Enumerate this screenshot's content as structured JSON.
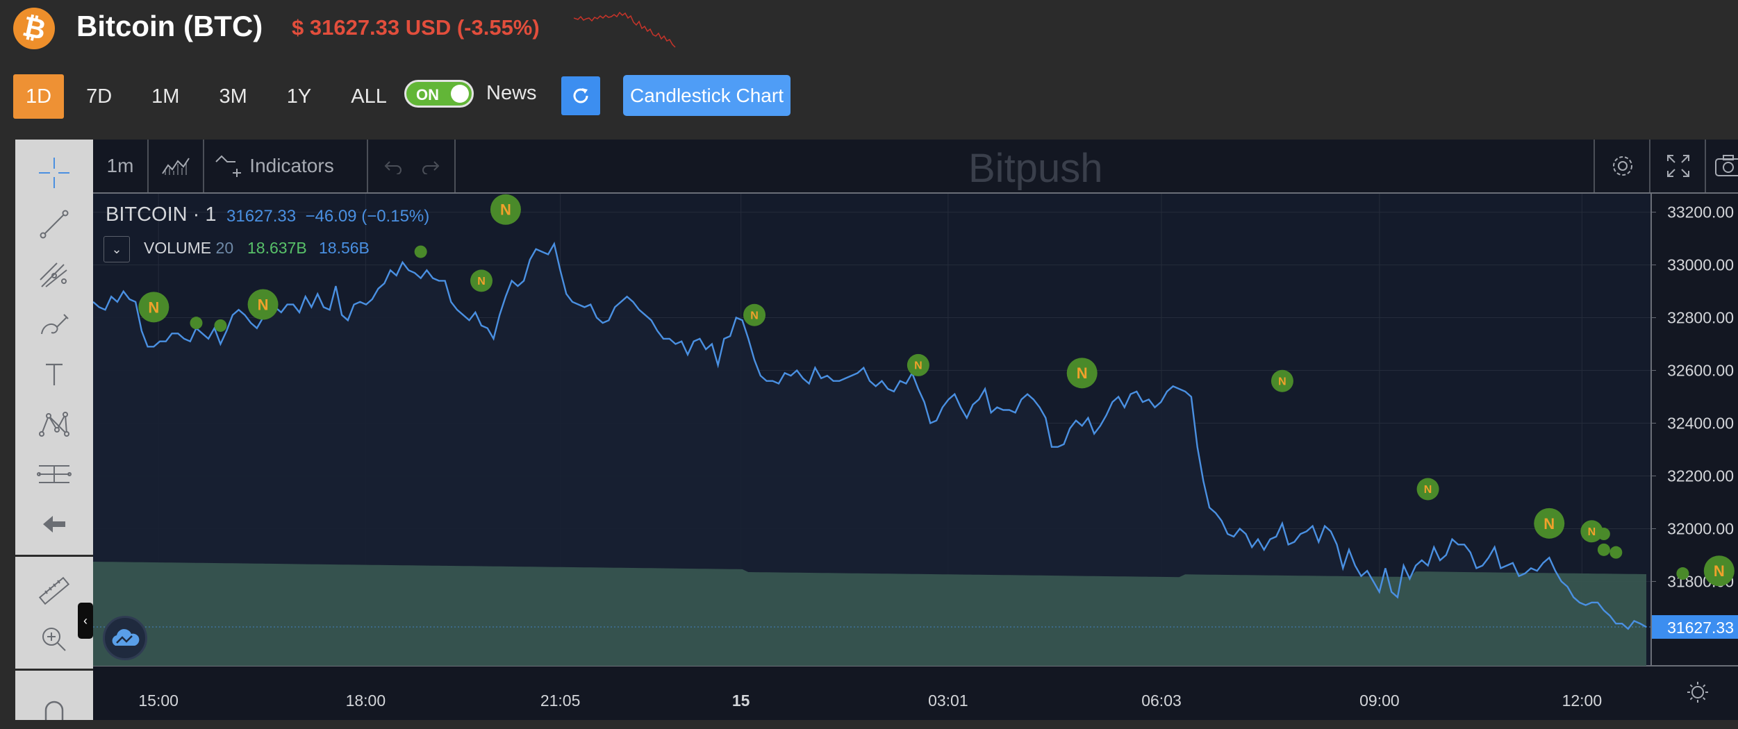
{
  "header": {
    "coin_symbol_glyph": "₿",
    "coin_name": "Bitcoin (BTC)",
    "price_text": "$ 31627.33 USD (-3.55%)",
    "accent_down": "#e24e3c"
  },
  "range": {
    "buttons": [
      "1D",
      "7D",
      "1M",
      "3M",
      "1Y",
      "ALL"
    ],
    "active": "1D"
  },
  "toggle": {
    "label": "ON",
    "state": true
  },
  "news_label": "News",
  "candlestick_label": "Candlestick Chart",
  "toolbar": {
    "interval": "1m",
    "indicators": "Indicators",
    "watermark": "Bitpush"
  },
  "legend": {
    "symbol": "BITCOIN",
    "interval": "1",
    "last": "31627.33",
    "change": "−46.09 (−0.15%)",
    "volume_label": "VOLUME",
    "volume_len": "20",
    "volume_a": "18.637B",
    "volume_b": "18.56B"
  },
  "colors": {
    "line": "#4a90e2",
    "volume_fill": "#385750",
    "news_marker": "#4a8a2a",
    "news_letter": "#f0a12c"
  },
  "chart_data": {
    "type": "area",
    "x_ticks": [
      "15:00",
      "18:00",
      "21:05",
      "15",
      "03:01",
      "06:03",
      "09:00",
      "12:00"
    ],
    "y_ticks": [
      33200,
      33000,
      32800,
      32600,
      32400,
      32200,
      32000,
      31800
    ],
    "ylim": [
      31480,
      33270
    ],
    "current_price_label": "31627.33",
    "series": [
      {
        "values": [
          32860,
          32840,
          32830,
          32880,
          32860,
          32900,
          32870,
          32860,
          32750,
          32690,
          32690,
          32710,
          32710,
          32740,
          32740,
          32720,
          32710,
          32760,
          32740,
          32720,
          32760,
          32700,
          32750,
          32810,
          32830,
          32810,
          32780,
          32760,
          32800,
          32830,
          32840,
          32820,
          32850,
          32850,
          32820,
          32880,
          32840,
          32890,
          32840,
          32830,
          32920,
          32810,
          32790,
          32850,
          32860,
          32850,
          32870,
          32910,
          32930,
          32980,
          32960,
          33010,
          32980,
          32970,
          32950,
          32980,
          32950,
          32940,
          32940,
          32860,
          32830,
          32810,
          32790,
          32820,
          32770,
          32760,
          32720,
          32810,
          32880,
          32940,
          32920,
          32940,
          33020,
          33060,
          33050,
          33040,
          33080,
          32980,
          32890,
          32860,
          32850,
          32840,
          32850,
          32800,
          32780,
          32790,
          32840,
          32860,
          32880,
          32860,
          32830,
          32810,
          32790,
          32750,
          32720,
          32720,
          32700,
          32710,
          32660,
          32710,
          32720,
          32680,
          32700,
          32620,
          32720,
          32730,
          32800,
          32790,
          32720,
          32640,
          32580,
          32560,
          32560,
          32550,
          32590,
          32580,
          32600,
          32570,
          32550,
          32610,
          32570,
          32580,
          32560,
          32560,
          32570,
          32580,
          32590,
          32610,
          32560,
          32540,
          32560,
          32530,
          32520,
          32560,
          32550,
          32590,
          32530,
          32480,
          32400,
          32410,
          32460,
          32490,
          32510,
          32460,
          32420,
          32470,
          32490,
          32530,
          32440,
          32460,
          32450,
          32450,
          32440,
          32490,
          32510,
          32490,
          32460,
          32420,
          32310,
          32310,
          32320,
          32380,
          32410,
          32390,
          32420,
          32360,
          32390,
          32430,
          32480,
          32500,
          32460,
          32510,
          32520,
          32480,
          32490,
          32460,
          32480,
          32520,
          32540,
          32530,
          32520,
          32500,
          32310,
          32180,
          32080,
          32060,
          32030,
          31980,
          31970,
          32000,
          31980,
          31930,
          31960,
          31920,
          31960,
          31970,
          32020,
          31940,
          31950,
          31980,
          31990,
          32010,
          31950,
          32010,
          31990,
          31940,
          31850,
          31920,
          31860,
          31820,
          31840,
          31800,
          31760,
          31850,
          31760,
          31740,
          31860,
          31810,
          31860,
          31880,
          31860,
          31930,
          31880,
          31900,
          31960,
          31940,
          31940,
          31910,
          31850,
          31860,
          31890,
          31930,
          31850,
          31860,
          31870,
          31820,
          31830,
          31850,
          31840,
          31870,
          31890,
          31840,
          31800,
          31780,
          31740,
          31720,
          31710,
          31720,
          31720,
          31690,
          31670,
          31640,
          31640,
          31620,
          31650,
          31640,
          31627
        ]
      }
    ],
    "volume_band": {
      "note": ""
    },
    "news_markers": [
      {
        "x_index": 10,
        "price": 32840
      },
      {
        "x_index": 17,
        "price": 32780
      },
      {
        "x_index": 21,
        "price": 32770
      },
      {
        "x_index": 28,
        "price": 32850
      },
      {
        "x_index": 54,
        "price": 33050
      },
      {
        "x_index": 64,
        "price": 32940
      },
      {
        "x_index": 68,
        "price": 33210
      },
      {
        "x_index": 109,
        "price": 32810
      },
      {
        "x_index": 136,
        "price": 32620
      },
      {
        "x_index": 163,
        "price": 32590
      },
      {
        "x_index": 196,
        "price": 32560
      },
      {
        "x_index": 220,
        "price": 32150
      },
      {
        "x_index": 240,
        "price": 32020
      },
      {
        "x_index": 247,
        "price": 31990
      },
      {
        "x_index": 249,
        "price": 31980
      },
      {
        "x_index": 249,
        "price": 31920
      },
      {
        "x_index": 251,
        "price": 31910
      },
      {
        "x_index": 262,
        "price": 31830
      },
      {
        "x_index": 268,
        "price": 31840
      }
    ]
  }
}
